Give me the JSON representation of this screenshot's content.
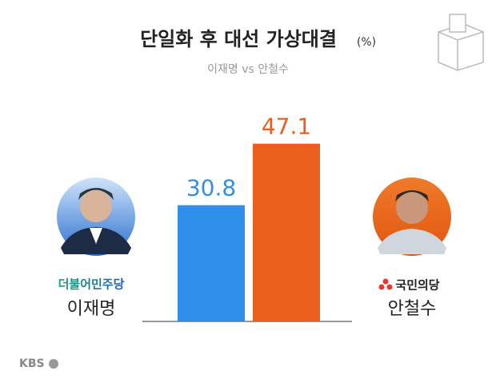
{
  "chart_data": {
    "type": "bar",
    "title": "단일화 후 대선 가상대결",
    "unit": "(%)",
    "subtitle": "이재명 vs 안철수",
    "categories": [
      "이재명",
      "안철수"
    ],
    "parties": [
      "더불어민주당",
      "국민의당"
    ],
    "values": [
      30.8,
      47.1
    ],
    "colors": [
      "#2f8fe9",
      "#ea5f1b"
    ],
    "logo": "KBS"
  }
}
